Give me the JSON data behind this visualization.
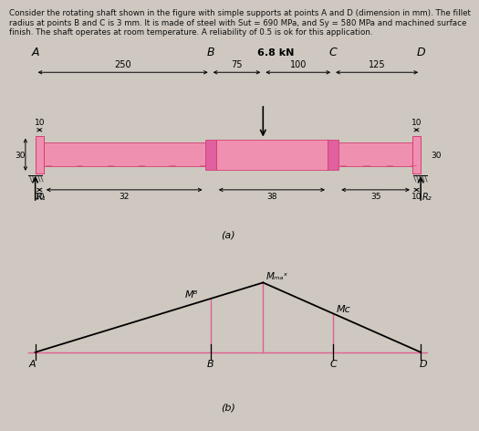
{
  "title_line1": "Consider the rotating shaft shown in the figure with simple supports at points A and D (dimension in mm). The fillet",
  "title_line2": "radius at points B and C is 3 mm. It is made of steel with Sut = 690 MPa, and Sy = 580 MPa and machined surface",
  "title_line3": "finish. The shaft operates at room temperature. A reliability of 0.5 is ok for this application.",
  "bg_color": "#cec8c0",
  "shaft_pink": "#f090b0",
  "shaft_dark_pink": "#d04070",
  "shaft_mid_pink": "#e060a0",
  "panel_bg": "#e0d8d0",
  "text_color": "#111111",
  "arrow_color": "#000000",
  "pink_line_color": "#e06090",
  "dim_line_color": "#333333",
  "label_A": "A",
  "label_B": "B",
  "label_C": "C",
  "label_D": "D",
  "dim_250": "250",
  "dim_75": "75",
  "dim_100": "100",
  "dim_125": "125",
  "dim_10_left": "10",
  "dim_10_right": "10",
  "dim_32": "32",
  "dim_38": "38",
  "dim_35": "35",
  "dim_30_left": "30",
  "dim_30_right": "30",
  "force_label": "6.8 kN",
  "R1_label": "R₁",
  "R2_label": "R₂",
  "Mmax_label": "Mₘₐˣ",
  "MB_label": "Mᴮ",
  "MC_label": "Mᴄ",
  "fig_label_a": "(a)",
  "fig_label_b": "(b)"
}
